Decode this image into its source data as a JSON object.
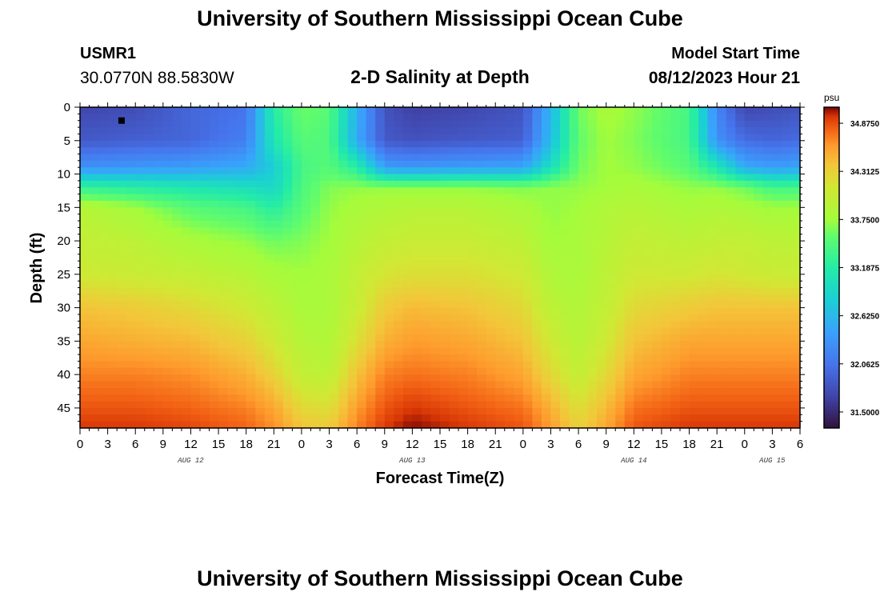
{
  "header": {
    "title": "University of Southern Mississippi Ocean Cube",
    "station": "USMR1",
    "coords": "30.0770N  88.5830W",
    "subtitle": "2-D Salinity at Depth",
    "model_start_label": "Model Start Time",
    "model_start_value": "08/12/2023 Hour 21"
  },
  "footer": {
    "title": "University of Southern Mississippi Ocean Cube"
  },
  "chart_data": {
    "type": "heatmap",
    "xlabel": "Forecast Time(Z)",
    "ylabel": "Depth (ft)",
    "x_range_hours": [
      0,
      78
    ],
    "y_range_ft": [
      0,
      48
    ],
    "y_inverted": true,
    "x_tick_labels": [
      "0",
      "3",
      "6",
      "9",
      "12",
      "15",
      "18",
      "21",
      "0",
      "3",
      "6",
      "9",
      "12",
      "15",
      "18",
      "21",
      "0",
      "3",
      "6",
      "9",
      "12",
      "15",
      "18",
      "21",
      "0",
      "3",
      "6"
    ],
    "y_ticks": [
      0,
      5,
      10,
      15,
      20,
      25,
      30,
      35,
      40,
      45
    ],
    "day_labels": [
      {
        "label": "AUG 12",
        "hour": 12
      },
      {
        "label": "AUG 13",
        "hour": 36
      },
      {
        "label": "AUG 14",
        "hour": 60
      },
      {
        "label": "AUG 15",
        "hour": 75
      }
    ],
    "colorbar": {
      "unit": "psu",
      "min": 31.3125,
      "max": 35.0625,
      "tick_labels": [
        "34.8750",
        "34.3125",
        "33.7500",
        "33.1875",
        "32.6250",
        "32.0625",
        "31.5000"
      ],
      "tick_values": [
        34.875,
        34.3125,
        33.75,
        33.1875,
        32.625,
        32.0625,
        31.5
      ]
    },
    "marker": {
      "hour": 4.5,
      "depth_ft": 2
    },
    "salinity_grid": {
      "hours": [
        0,
        6,
        12,
        18,
        21,
        24,
        27,
        30,
        33,
        36,
        42,
        48,
        51,
        54,
        57,
        60,
        66,
        69,
        72,
        75,
        78
      ],
      "depths_ft": [
        0,
        5,
        9,
        12,
        15,
        20,
        25,
        30,
        35,
        40,
        45,
        48
      ],
      "values_psu": [
        [
          31.7,
          31.75,
          31.95,
          32.05,
          33.2,
          33.6,
          33.5,
          32.55,
          31.8,
          31.65,
          31.7,
          31.8,
          32.6,
          33.6,
          33.8,
          33.7,
          33.4,
          32.2,
          31.7,
          31.75,
          31.8
        ],
        [
          31.85,
          31.9,
          31.95,
          32.15,
          33.1,
          33.5,
          33.45,
          32.5,
          31.85,
          31.8,
          31.85,
          31.9,
          32.65,
          33.55,
          33.75,
          33.65,
          33.4,
          32.3,
          32.0,
          31.95,
          32.0
        ],
        [
          32.3,
          32.35,
          32.4,
          32.5,
          32.8,
          33.4,
          33.5,
          33.2,
          32.4,
          32.35,
          32.4,
          32.45,
          33.0,
          33.6,
          33.75,
          33.7,
          33.5,
          33.1,
          32.5,
          32.4,
          32.45
        ],
        [
          33.3,
          33.2,
          33.1,
          33.0,
          32.9,
          33.45,
          33.65,
          33.7,
          33.7,
          33.7,
          33.7,
          33.65,
          33.7,
          33.7,
          33.75,
          33.8,
          33.7,
          33.7,
          33.6,
          33.4,
          33.4
        ],
        [
          33.9,
          33.75,
          33.5,
          33.4,
          33.2,
          33.5,
          33.7,
          33.8,
          33.85,
          33.9,
          33.9,
          33.8,
          33.7,
          33.75,
          33.85,
          33.9,
          33.8,
          33.85,
          33.8,
          33.75,
          33.75
        ],
        [
          34.0,
          33.95,
          33.8,
          33.7,
          33.6,
          33.65,
          33.75,
          33.9,
          34.0,
          34.05,
          34.05,
          33.95,
          33.75,
          33.8,
          33.9,
          34.0,
          33.95,
          34.0,
          34.0,
          33.95,
          33.95
        ],
        [
          34.1,
          34.05,
          34.0,
          33.9,
          33.8,
          33.75,
          33.8,
          34.0,
          34.15,
          34.2,
          34.2,
          34.1,
          33.85,
          33.8,
          33.95,
          34.1,
          34.1,
          34.15,
          34.1,
          34.05,
          34.05
        ],
        [
          34.4,
          34.35,
          34.25,
          34.1,
          33.95,
          33.8,
          33.8,
          34.05,
          34.35,
          34.45,
          34.4,
          34.25,
          33.95,
          33.85,
          34.0,
          34.25,
          34.35,
          34.4,
          34.4,
          34.4,
          34.4
        ],
        [
          34.55,
          34.5,
          34.45,
          34.3,
          34.1,
          33.9,
          33.85,
          34.2,
          34.5,
          34.6,
          34.55,
          34.4,
          34.1,
          33.9,
          34.1,
          34.4,
          34.55,
          34.55,
          34.55,
          34.55,
          34.55
        ],
        [
          34.7,
          34.7,
          34.65,
          34.5,
          34.3,
          34.0,
          33.95,
          34.4,
          34.7,
          34.75,
          34.7,
          34.55,
          34.25,
          34.0,
          34.25,
          34.55,
          34.7,
          34.7,
          34.7,
          34.7,
          34.7
        ],
        [
          34.85,
          34.85,
          34.8,
          34.7,
          34.55,
          34.25,
          34.2,
          34.6,
          34.85,
          34.95,
          34.85,
          34.75,
          34.5,
          34.2,
          34.45,
          34.75,
          34.85,
          34.85,
          34.85,
          34.85,
          34.85
        ],
        [
          34.95,
          34.95,
          34.9,
          34.8,
          34.65,
          34.4,
          34.35,
          34.7,
          34.95,
          35.05,
          34.95,
          34.85,
          34.6,
          34.3,
          34.55,
          34.85,
          34.95,
          34.95,
          34.95,
          34.95,
          34.95
        ]
      ]
    }
  }
}
